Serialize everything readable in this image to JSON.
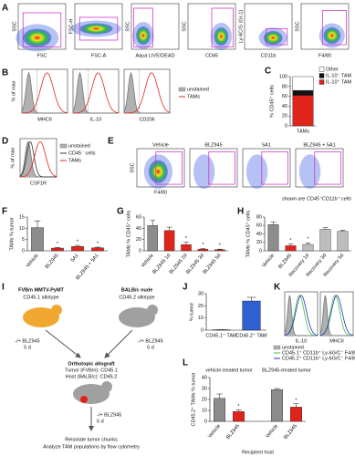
{
  "panel_labels": [
    "A",
    "B",
    "C",
    "D",
    "E",
    "F",
    "G",
    "H",
    "I",
    "J",
    "K",
    "L"
  ],
  "panel_a": {
    "plots": [
      {
        "x_label": "FSC",
        "y_label": "SSC"
      },
      {
        "x_label": "FSC-A",
        "y_label": "FSC-H"
      },
      {
        "x_label": "Aqua LIVE/DEAD",
        "y_label": "SSC"
      },
      {
        "x_label": "CD45",
        "y_label": "SSC"
      },
      {
        "x_label": "CD11b",
        "y_label": "Ly-6C/G (Gr-1)"
      },
      {
        "x_label": "F4/80",
        "y_label": "SSC"
      }
    ]
  },
  "panel_b": {
    "y_label": "% of max",
    "markers": [
      "MHCII",
      "IL-10",
      "CD206"
    ],
    "legend": [
      "unstained",
      "TAMs"
    ]
  },
  "panel_d": {
    "y_label": "% of max",
    "marker": "CSF1R",
    "legend": [
      "unstained",
      "CD45⁻ cells",
      "TAMs"
    ]
  },
  "panel_e": {
    "conditions": [
      "Vehicle",
      "BLZ945",
      "5A1",
      "BLZ945 + 5A1"
    ],
    "x_label": "F4/80",
    "y_label": "SSC",
    "note": "shown are CD45⁺CD11b⁺ cells"
  },
  "diagram_i": {
    "donor": {
      "name": "FVB/n MMTV-PyMT",
      "allotype": "CD45.1 allotype",
      "treatment": "-/+ BLZ945",
      "duration": "5 d"
    },
    "host": {
      "name": "BALB/c nude",
      "allotype": "CD45.2 allotype",
      "treatment": "-/+ BLZ945",
      "duration": "5 d"
    },
    "graft": {
      "title": "Orthotopic allograft",
      "tumor": "Tumor (FVB/n): CD45.1",
      "recipient": "Host (BALB/c): CD45.2",
      "treatment": "-/+ BLZ945",
      "duration": "5 d"
    },
    "steps": [
      "Reisolate tumor chunks",
      "Analyze TAM populations by flow cytometry"
    ]
  },
  "panel_k": {
    "markers": [
      "IL-10",
      "MHCII"
    ],
    "legend": [
      "unstained",
      "CD45.1⁺ CD11b⁺ Ly-6G/C⁻ F4/80⁺ TAM",
      "CD45.2⁺ CD11b⁺ Ly-6G/C⁻ F4/80⁺ TAM"
    ]
  },
  "chart_data": [
    {
      "type": "stacked_bar",
      "y_label": "% CD45⁺ cells",
      "categories": [
        "TAMs"
      ],
      "series": [
        {
          "name": "Other",
          "color": "#ffffff",
          "values": [
            28
          ]
        },
        {
          "name": "IL-10⁻ TAM",
          "color": "#111111",
          "values": [
            10
          ]
        },
        {
          "name": "IL-10⁺ TAM",
          "color": "#e0241b",
          "values": [
            62
          ]
        }
      ],
      "ylim": [
        0,
        100
      ],
      "yticks": [
        0,
        20,
        40,
        60,
        80,
        100
      ]
    },
    {
      "type": "bar",
      "y_label": "TAMs % tumor",
      "categories": [
        "Vehicle",
        "BLZ945",
        "5A1",
        "BLZ945 + 5A1"
      ],
      "values": [
        10.3,
        1.2,
        1.9,
        1.3
      ],
      "errors": [
        3.0,
        0.3,
        0.5,
        0.3
      ],
      "significance": [
        null,
        "*",
        "*",
        "*"
      ],
      "colors": [
        "#8c8c8c",
        "#e0241b",
        "#e0241b",
        "#e0241b"
      ],
      "ylim": [
        0,
        15
      ],
      "yticks": [
        0,
        5,
        10,
        15
      ]
    },
    {
      "type": "bar",
      "y_label": "TAMs % CD45⁺ cells",
      "categories": [
        "Vehicle",
        "BLZ945 1d",
        "BLZ945 2d",
        "BLZ945 3d",
        "BLZ945 5d"
      ],
      "values": [
        45,
        36,
        11,
        3,
        2
      ],
      "errors": [
        9,
        6,
        4,
        1,
        1
      ],
      "significance": [
        null,
        null,
        "*",
        "*",
        "*"
      ],
      "colors": [
        "#8c8c8c",
        "#e0241b",
        "#e0241b",
        "#e0241b",
        "#e0241b"
      ],
      "ylim": [
        0,
        60
      ],
      "yticks": [
        0,
        20,
        40,
        60
      ]
    },
    {
      "type": "bar",
      "y_label": "TAMs % CD45⁺ cells",
      "categories": [
        "Vehicle",
        "BLZ945",
        "Recovery 1d",
        "Recovery 3d",
        "Recovery 5d"
      ],
      "values": [
        62,
        12,
        15,
        51,
        46
      ],
      "errors": [
        6,
        4,
        4,
        4,
        3
      ],
      "significance": [
        null,
        "*",
        "*",
        null,
        null
      ],
      "colors": [
        "#8c8c8c",
        "#e0241b",
        "#bdbdbd",
        "#bdbdbd",
        "#bdbdbd"
      ],
      "ylim": [
        0,
        80
      ],
      "yticks": [
        0,
        20,
        40,
        60,
        80
      ]
    },
    {
      "type": "bar",
      "y_label": "% tumor",
      "categories": [
        "CD45.1⁺ TAM",
        "CD45.2⁺ TAM"
      ],
      "values": [
        0.3,
        24
      ],
      "errors": [
        0.1,
        3
      ],
      "colors": [
        "#2f5fd0",
        "#2f5fd0"
      ],
      "ylim": [
        0,
        30
      ],
      "yticks": [
        0,
        10,
        20,
        30
      ]
    },
    {
      "type": "grouped_bar",
      "y_label": "CD45.2⁺ TAMs % tumor",
      "x_label": "Recipient host",
      "groups": [
        {
          "name": "vehicle-treated tumor",
          "categories": [
            "Vehicle",
            "BLZ945"
          ],
          "values": [
            21,
            9
          ],
          "errors": [
            4,
            1.5
          ],
          "significance": [
            null,
            "*"
          ],
          "colors": [
            "#8c8c8c",
            "#e0241b"
          ]
        },
        {
          "name": "BLZ945-treated tumor",
          "categories": [
            "Vehicle",
            "BLZ945"
          ],
          "values": [
            29,
            13
          ],
          "errors": [
            1,
            3
          ],
          "significance": [
            null,
            "*"
          ],
          "colors": [
            "#8c8c8c",
            "#e0241b"
          ]
        }
      ],
      "ylim": [
        0,
        40
      ],
      "yticks": [
        0,
        10,
        20,
        30,
        40
      ]
    }
  ]
}
